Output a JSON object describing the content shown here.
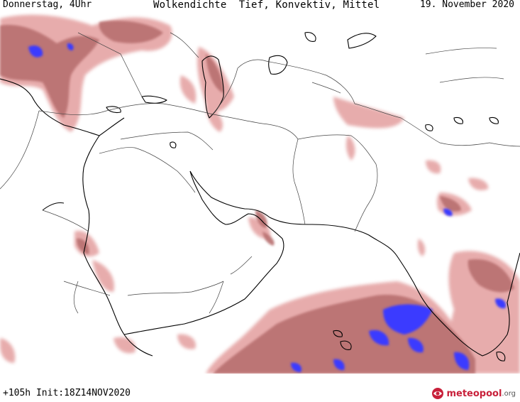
{
  "header": {
    "left": "Donnerstag, 4Uhr",
    "center": "Wolkendichte  Tief, Konvektiv, Mittel",
    "right": "19. November 2020"
  },
  "footer": {
    "left": "+105h Init:18Z14NOV2020"
  },
  "logo": {
    "word": "meteopool",
    "tld": ".org"
  },
  "colors": {
    "cloud_light": "#e6a8a8",
    "cloud_mid": "#b86f6f",
    "cloud_dark": "#8a3a3a",
    "cloud_dense": "#3b3bff",
    "coast": "#000000",
    "border": "#444444"
  }
}
